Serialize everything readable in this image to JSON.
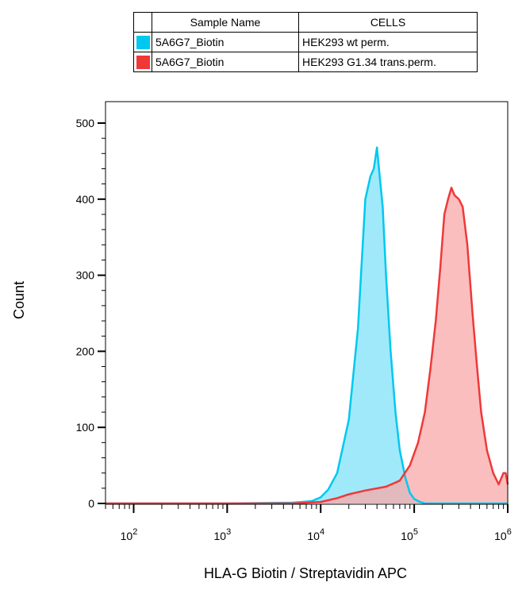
{
  "legend": {
    "header": {
      "col1": "Sample Name",
      "col2": "CELLS"
    },
    "rows": [
      {
        "sample": "5A6G7_Biotin",
        "cells": "HEK293 wt perm.",
        "color": "#00c8f0"
      },
      {
        "sample": "5A6G7_Biotin",
        "cells": "HEK293 G1.34 trans.perm.",
        "color": "#f03838"
      }
    ]
  },
  "chart_data": {
    "type": "area",
    "xlabel": "HLA-G Biotin / Streptavidin APC",
    "ylabel": "Count",
    "x_scale": "log",
    "xlim": [
      50,
      1000000
    ],
    "ylim": [
      0,
      500
    ],
    "yticks": [
      0,
      100,
      200,
      300,
      400,
      500
    ],
    "xticks": [
      {
        "base": "10",
        "exp": "2",
        "value": 100
      },
      {
        "base": "10",
        "exp": "3",
        "value": 1000
      },
      {
        "base": "10",
        "exp": "4",
        "value": 10000
      },
      {
        "base": "10",
        "exp": "5",
        "value": 100000
      },
      {
        "base": "10",
        "exp": "6",
        "value": 1000000
      }
    ],
    "series": [
      {
        "name": "HEK293 wt perm.",
        "color": "#00c8f0",
        "fill": "#80e2f8",
        "x": [
          50,
          1000,
          5000,
          8000,
          10000,
          12000,
          15000,
          20000,
          25000,
          30000,
          34000,
          37000,
          40000,
          42000,
          46000,
          50000,
          56000,
          63000,
          70000,
          80000,
          90000,
          100000,
          115000,
          130000,
          150000,
          200000,
          1000000
        ],
        "y": [
          0,
          0,
          1,
          3,
          8,
          18,
          40,
          110,
          230,
          400,
          430,
          440,
          468,
          440,
          390,
          300,
          200,
          120,
          70,
          35,
          14,
          6,
          2,
          0,
          0,
          0,
          0
        ]
      },
      {
        "name": "HEK293 G1.34 trans.perm.",
        "color": "#f03838",
        "fill": "#f8a8a8",
        "x": [
          50,
          5000,
          10000,
          15000,
          20000,
          30000,
          50000,
          70000,
          90000,
          110000,
          130000,
          150000,
          170000,
          190000,
          210000,
          230000,
          250000,
          270000,
          300000,
          330000,
          370000,
          420000,
          470000,
          520000,
          600000,
          700000,
          800000,
          900000,
          950000,
          1000000
        ],
        "y": [
          0,
          0,
          2,
          7,
          12,
          17,
          22,
          30,
          50,
          80,
          120,
          180,
          240,
          310,
          380,
          400,
          415,
          405,
          400,
          390,
          340,
          250,
          180,
          120,
          70,
          40,
          25,
          40,
          40,
          25
        ]
      }
    ]
  }
}
